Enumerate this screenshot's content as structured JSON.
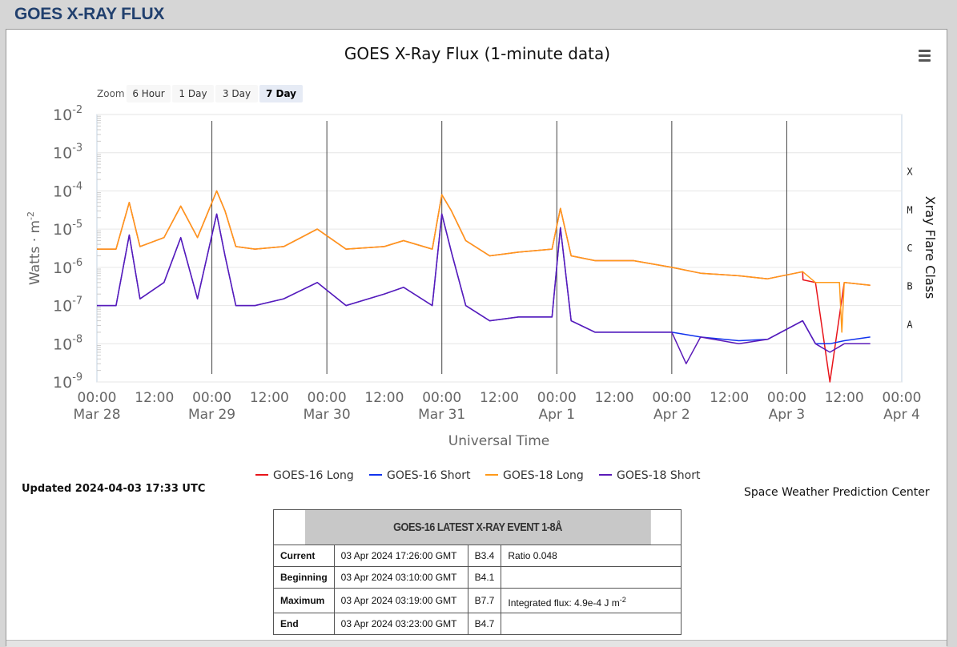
{
  "page": {
    "header": "GOES X-RAY FLUX"
  },
  "zoom": {
    "label": "Zoom",
    "buttons": [
      "6 Hour",
      "1 Day",
      "3 Day",
      "7 Day"
    ],
    "active": "7 Day"
  },
  "updated": "Updated 2024-04-03 17:33 UTC",
  "credit": "Space Weather Prediction Center",
  "chart_data": {
    "type": "line",
    "title": "GOES X-Ray Flux (1-minute data)",
    "xlabel": "Universal Time",
    "ylabel": "Watts · m",
    "ylabel_superscript": "-2",
    "right_axis_label": "Xray Flare Class",
    "y_scale": "log",
    "ylim": [
      1e-09,
      0.01
    ],
    "y_ticks": [
      {
        "base": "10",
        "exp": "-2"
      },
      {
        "base": "10",
        "exp": "-3"
      },
      {
        "base": "10",
        "exp": "-4"
      },
      {
        "base": "10",
        "exp": "-5"
      },
      {
        "base": "10",
        "exp": "-6"
      },
      {
        "base": "10",
        "exp": "-7"
      },
      {
        "base": "10",
        "exp": "-8"
      },
      {
        "base": "10",
        "exp": "-9"
      }
    ],
    "flare_classes": [
      "X",
      "M",
      "C",
      "B",
      "A"
    ],
    "xlim": [
      "2024-03-28 00:00",
      "2024-04-04 00:00"
    ],
    "x_ticks": [
      {
        "time": "00:00",
        "date": "Mar 28"
      },
      {
        "time": "12:00",
        "date": ""
      },
      {
        "time": "00:00",
        "date": "Mar 29"
      },
      {
        "time": "12:00",
        "date": ""
      },
      {
        "time": "00:00",
        "date": "Mar 30"
      },
      {
        "time": "12:00",
        "date": ""
      },
      {
        "time": "00:00",
        "date": "Mar 31"
      },
      {
        "time": "12:00",
        "date": ""
      },
      {
        "time": "00:00",
        "date": "Apr 1"
      },
      {
        "time": "12:00",
        "date": ""
      },
      {
        "time": "00:00",
        "date": "Apr 2"
      },
      {
        "time": "12:00",
        "date": ""
      },
      {
        "time": "00:00",
        "date": "Apr 3"
      },
      {
        "time": "12:00",
        "date": ""
      },
      {
        "time": "00:00",
        "date": "Apr 4"
      }
    ],
    "grid": true,
    "legend_position": "bottom-center",
    "series": [
      {
        "name": "GOES-16 Long",
        "color": "#e8141a",
        "x": [
          "03-28 00:00",
          "03-28 04:00",
          "03-28 06:45",
          "03-28 09:00",
          "03-28 14:00",
          "03-28 17:30",
          "03-28 21:00",
          "03-29 01:00",
          "03-29 02:45",
          "03-29 05:00",
          "03-29 09:00",
          "03-29 15:00",
          "03-29 22:00",
          "03-30 04:00",
          "03-30 12:00",
          "03-30 16:00",
          "03-30 22:00",
          "03-31 00:00",
          "03-31 02:00",
          "03-31 05:00",
          "03-31 10:00",
          "03-31 16:00",
          "03-31 23:00",
          "04-01 00:45",
          "04-01 03:00",
          "04-01 08:00",
          "04-01 16:00",
          "04-02 00:00",
          "04-02 06:00",
          "04-02 14:00",
          "04-02 20:00",
          "04-03 03:19",
          "04-03 03:23",
          "04-03 06:00",
          "04-03 09:00",
          "04-03 12:00",
          "04-03 17:26"
        ],
        "y": [
          3e-06,
          3e-06,
          5e-05,
          3.5e-06,
          6e-06,
          4e-05,
          6e-06,
          0.0001,
          3e-05,
          3.5e-06,
          3e-06,
          3.5e-06,
          1e-05,
          3e-06,
          3.5e-06,
          5e-06,
          3e-06,
          8e-05,
          3e-05,
          5e-06,
          2e-06,
          2.5e-06,
          3e-06,
          3.5e-05,
          2e-06,
          1.5e-06,
          1.5e-06,
          1e-06,
          7e-07,
          6e-07,
          5e-07,
          7.7e-07,
          4.7e-07,
          4e-07,
          1e-09,
          4e-07,
          3.4e-07
        ]
      },
      {
        "name": "GOES-16 Short",
        "color": "#1133ee",
        "x": [
          "03-28 00:00",
          "03-28 04:00",
          "03-28 06:45",
          "03-28 09:00",
          "03-28 14:00",
          "03-28 17:30",
          "03-28 21:00",
          "03-29 01:00",
          "03-29 02:45",
          "03-29 05:00",
          "03-29 09:00",
          "03-29 15:00",
          "03-29 22:00",
          "03-30 04:00",
          "03-30 12:00",
          "03-30 16:00",
          "03-30 22:00",
          "03-31 00:00",
          "03-31 02:00",
          "03-31 05:00",
          "03-31 10:00",
          "03-31 16:00",
          "03-31 23:00",
          "04-01 00:45",
          "04-01 03:00",
          "04-01 08:00",
          "04-01 16:00",
          "04-02 00:00",
          "04-02 06:00",
          "04-02 14:00",
          "04-02 20:00",
          "04-03 03:19",
          "04-03 06:00",
          "04-03 09:00",
          "04-03 12:00",
          "04-03 17:26"
        ],
        "y": [
          1e-07,
          1e-07,
          7e-06,
          1.5e-07,
          4e-07,
          6e-06,
          1.5e-07,
          2.5e-05,
          2e-06,
          1e-07,
          1e-07,
          1.5e-07,
          4e-07,
          1e-07,
          2e-07,
          3e-07,
          1e-07,
          2.5e-05,
          2.5e-06,
          1e-07,
          4e-08,
          5e-08,
          5e-08,
          1.1e-05,
          4e-08,
          2e-08,
          2e-08,
          2e-08,
          1.5e-08,
          1.2e-08,
          1.3e-08,
          4e-08,
          1e-08,
          1e-08,
          1.2e-08,
          1.5e-08
        ]
      },
      {
        "name": "GOES-18 Long",
        "color": "#ff9a1a",
        "x": [
          "03-28 00:00",
          "03-28 04:00",
          "03-28 06:45",
          "03-28 09:00",
          "03-28 14:00",
          "03-28 17:30",
          "03-28 21:00",
          "03-29 01:00",
          "03-29 02:45",
          "03-29 05:00",
          "03-29 09:00",
          "03-29 15:00",
          "03-29 22:00",
          "03-30 04:00",
          "03-30 12:00",
          "03-30 16:00",
          "03-30 22:00",
          "03-31 00:00",
          "03-31 02:00",
          "03-31 05:00",
          "03-31 10:00",
          "03-31 16:00",
          "03-31 23:00",
          "04-01 00:45",
          "04-01 03:00",
          "04-01 08:00",
          "04-01 16:00",
          "04-02 00:00",
          "04-02 06:00",
          "04-02 14:00",
          "04-02 20:00",
          "04-03 03:19",
          "04-03 06:00",
          "04-03 11:00",
          "04-03 11:30",
          "04-03 12:00",
          "04-03 17:26"
        ],
        "y": [
          3e-06,
          3e-06,
          5e-05,
          3.5e-06,
          6e-06,
          4e-05,
          6e-06,
          0.0001,
          3e-05,
          3.5e-06,
          3e-06,
          3.5e-06,
          1e-05,
          3e-06,
          3.5e-06,
          5e-06,
          3e-06,
          8e-05,
          3e-05,
          5e-06,
          2e-06,
          2.5e-06,
          3e-06,
          3.5e-05,
          2e-06,
          1.5e-06,
          1.5e-06,
          1e-06,
          7e-07,
          6e-07,
          5e-07,
          7.7e-07,
          4e-07,
          4e-07,
          2e-08,
          4e-07,
          3.4e-07
        ]
      },
      {
        "name": "GOES-18 Short",
        "color": "#5b1ab8",
        "x": [
          "03-28 00:00",
          "03-28 04:00",
          "03-28 06:45",
          "03-28 09:00",
          "03-28 14:00",
          "03-28 17:30",
          "03-28 21:00",
          "03-29 01:00",
          "03-29 02:45",
          "03-29 05:00",
          "03-29 09:00",
          "03-29 15:00",
          "03-29 22:00",
          "03-30 04:00",
          "03-30 12:00",
          "03-30 16:00",
          "03-30 22:00",
          "03-31 00:00",
          "03-31 02:00",
          "03-31 05:00",
          "03-31 10:00",
          "03-31 16:00",
          "03-31 23:00",
          "04-01 00:45",
          "04-01 03:00",
          "04-01 08:00",
          "04-01 16:00",
          "04-02 00:00",
          "04-02 03:00",
          "04-02 06:00",
          "04-02 14:00",
          "04-02 20:00",
          "04-03 03:19",
          "04-03 06:00",
          "04-03 09:00",
          "04-03 12:00",
          "04-03 17:26"
        ],
        "y": [
          1e-07,
          1e-07,
          7e-06,
          1.5e-07,
          4e-07,
          6e-06,
          1.5e-07,
          2.5e-05,
          2e-06,
          1e-07,
          1e-07,
          1.5e-07,
          4e-07,
          1e-07,
          2e-07,
          3e-07,
          1e-07,
          2.5e-05,
          2.5e-06,
          1e-07,
          4e-08,
          5e-08,
          5e-08,
          1.1e-05,
          4e-08,
          2e-08,
          2e-08,
          2e-08,
          3e-09,
          1.5e-08,
          1e-08,
          1.3e-08,
          4e-08,
          1e-08,
          6e-09,
          1e-08,
          1e-08
        ]
      }
    ]
  },
  "event_table": {
    "title": "GOES-16 LATEST X-RAY EVENT 1-8Å",
    "rows": [
      {
        "label": "Current",
        "time": "03 Apr 2024 17:26:00 GMT",
        "class": "B3.4",
        "extra": "Ratio 0.048",
        "extra_sup": ""
      },
      {
        "label": "Beginning",
        "time": "03 Apr 2024 03:10:00 GMT",
        "class": "B4.1",
        "extra": "",
        "extra_sup": ""
      },
      {
        "label": "Maximum",
        "time": "03 Apr 2024 03:19:00 GMT",
        "class": "B7.7",
        "extra": "Integrated flux: 4.9e-4 J m",
        "extra_sup": "-2"
      },
      {
        "label": "End",
        "time": "03 Apr 2024 03:23:00 GMT",
        "class": "B4.7",
        "extra": "",
        "extra_sup": ""
      }
    ]
  }
}
